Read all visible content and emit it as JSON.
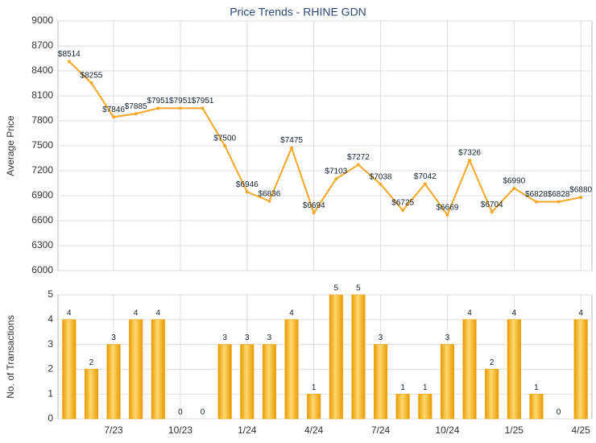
{
  "chart_data": [
    {
      "type": "line",
      "title": "Price Trends - RHINE GDN",
      "y_label": "Average Price",
      "categories": [
        null,
        null,
        "7/23",
        null,
        null,
        "10/23",
        null,
        null,
        "1/24",
        null,
        null,
        "4/24",
        null,
        null,
        "7/24",
        null,
        null,
        "10/24",
        null,
        null,
        "1/25",
        null,
        null,
        "4/25"
      ],
      "values": [
        8514,
        8255,
        7846,
        7885,
        7951,
        7951,
        7951,
        7500,
        6946,
        6836,
        7475,
        6694,
        7103,
        7272,
        7038,
        6725,
        7042,
        6669,
        7326,
        6704,
        6990,
        6828,
        6828,
        6880
      ],
      "value_labels": [
        "$8514",
        "$8255",
        "$7846",
        "$7885",
        "$7951",
        "$7951",
        "$7951",
        "$7500",
        "$6946",
        "$6836",
        "$7475",
        "$6694",
        "$7103",
        "$7272",
        "$7038",
        "$6725",
        "$7042",
        "$6669",
        "$7326",
        "$6704",
        "$6990",
        "$6828",
        "$6828",
        "$6880"
      ],
      "color": "#f5a623",
      "ylim": [
        6000,
        9000
      ],
      "yticks": [
        6000,
        6300,
        6600,
        6900,
        7200,
        7500,
        7800,
        8100,
        8400,
        8700,
        9000
      ],
      "grid": true
    },
    {
      "type": "bar",
      "y_label": "No. of Transactions",
      "categories": [
        null,
        null,
        "7/23",
        null,
        null,
        "10/23",
        null,
        null,
        "1/24",
        null,
        null,
        "4/24",
        null,
        null,
        "7/24",
        null,
        null,
        "10/24",
        null,
        null,
        "1/25",
        null,
        null,
        "4/25"
      ],
      "values": [
        4,
        2,
        3,
        4,
        4,
        0,
        0,
        3,
        3,
        3,
        4,
        1,
        5,
        5,
        3,
        1,
        1,
        3,
        4,
        2,
        4,
        1,
        0,
        4
      ],
      "color": "#f0a000",
      "ylim": [
        0,
        5
      ],
      "yticks": [
        0,
        1,
        2,
        3,
        4,
        5
      ],
      "grid": true
    }
  ]
}
